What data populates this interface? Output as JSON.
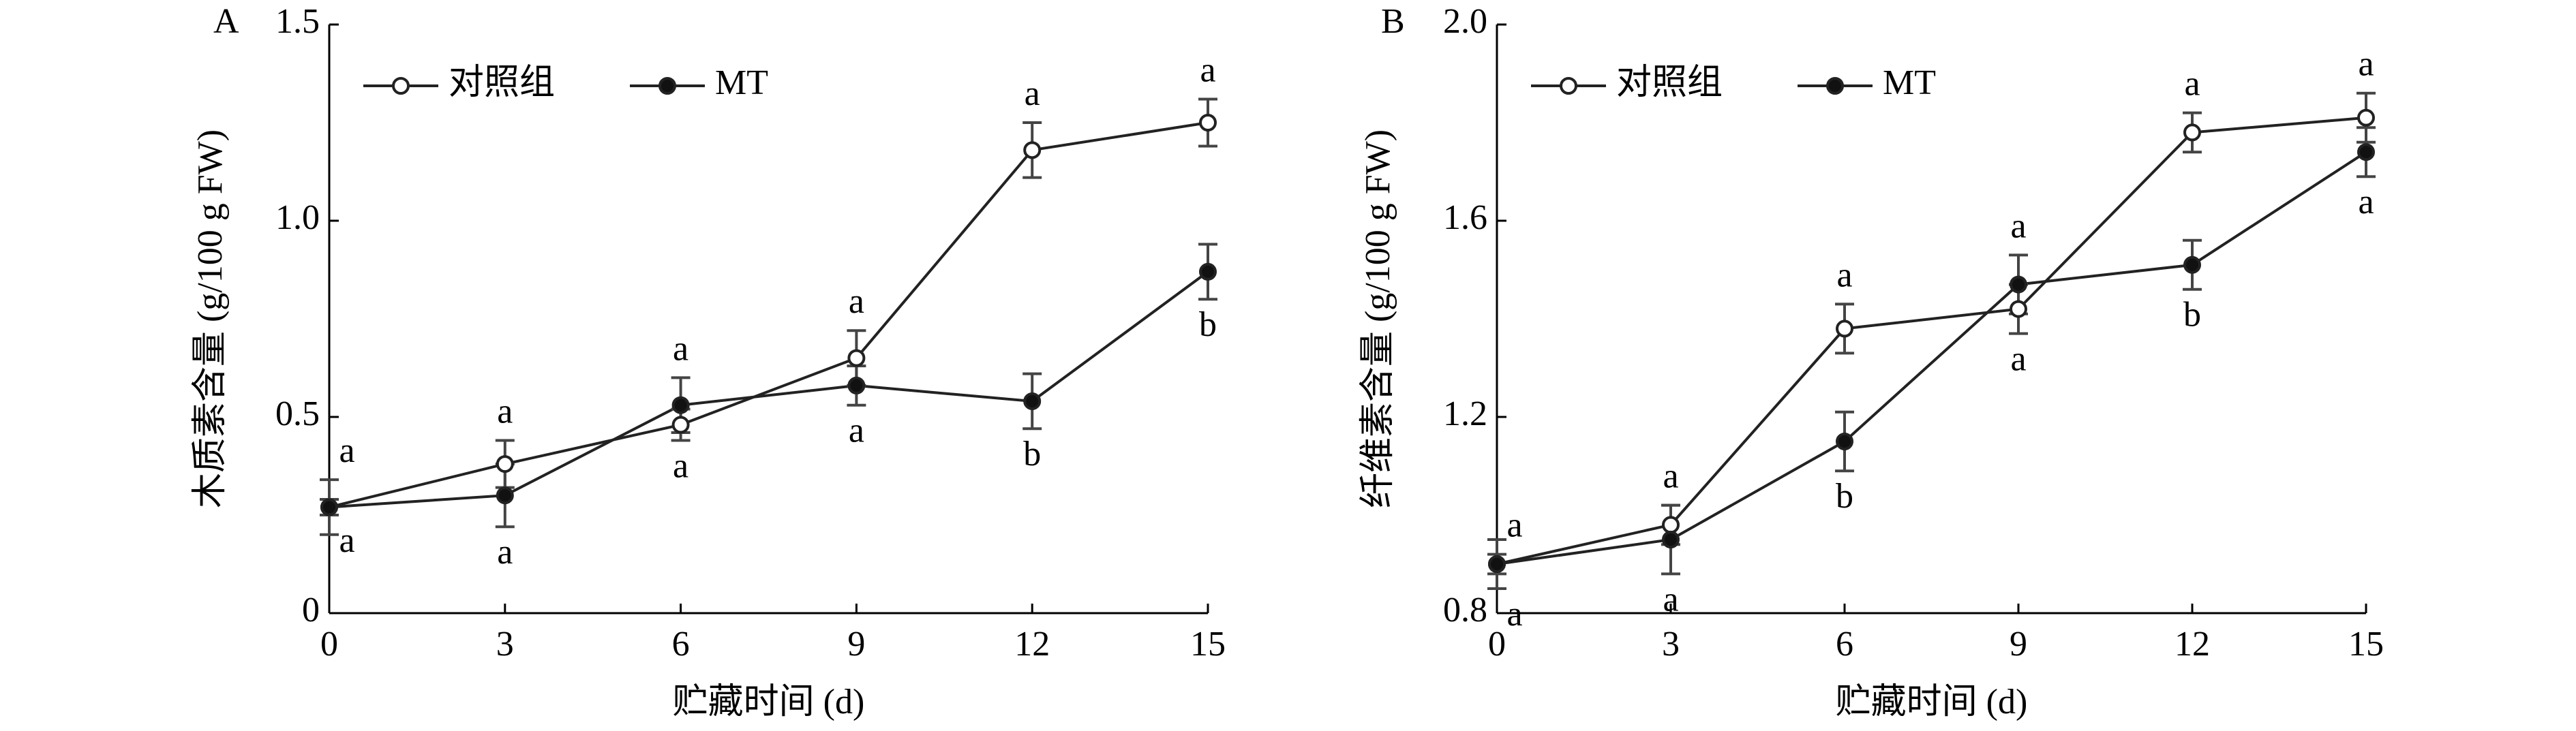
{
  "chart_data": [
    {
      "type": "line",
      "panel": "A",
      "ylabel": "木质素含量 (g/100 g FW)",
      "xlabel": "贮藏时间 (d)",
      "x": [
        0,
        3,
        6,
        9,
        12,
        15
      ],
      "xlim": [
        0,
        15
      ],
      "xticks": [
        0,
        3,
        6,
        9,
        12,
        15
      ],
      "ylim": [
        0,
        1.5
      ],
      "yticks": [
        0,
        0.5,
        {
          "value": 1,
          "label": "1.0"
        },
        1.5
      ],
      "series": [
        {
          "name": "对照组",
          "color": "#222222",
          "marker_fill": "#ffffff",
          "values": [
            0.27,
            0.38,
            0.48,
            0.65,
            1.18,
            1.25
          ],
          "errors": [
            0.07,
            0.06,
            0.04,
            0.07,
            0.07,
            0.06
          ],
          "letters": [
            "a",
            "a",
            "a",
            "a",
            "a",
            "a"
          ]
        },
        {
          "name": "MT",
          "color": "#222222",
          "marker_fill": "#111111",
          "values": [
            0.27,
            0.3,
            0.53,
            0.58,
            0.54,
            0.87
          ],
          "errors": [
            0.02,
            0.08,
            0.07,
            0.05,
            0.07,
            0.07
          ],
          "letters": [
            "a",
            "a",
            "a",
            "a",
            "b",
            "b"
          ]
        }
      ]
    },
    {
      "type": "line",
      "panel": "B",
      "ylabel": "纤维素含量 (g/100 g FW)",
      "xlabel": "贮藏时间 (d)",
      "x": [
        0,
        3,
        6,
        9,
        12,
        15
      ],
      "xlim": [
        0,
        15
      ],
      "xticks": [
        0,
        3,
        6,
        9,
        12,
        15
      ],
      "ylim": [
        0.8,
        2.0
      ],
      "yticks": [
        0.8,
        1.2,
        1.6,
        {
          "value": 2,
          "label": "2.0"
        }
      ],
      "series": [
        {
          "name": "对照组",
          "color": "#222222",
          "marker_fill": "#ffffff",
          "values": [
            0.9,
            0.98,
            1.38,
            1.42,
            1.78,
            1.81
          ],
          "errors": [
            0.02,
            0.04,
            0.05,
            0.05,
            0.04,
            0.05
          ],
          "letters": [
            "a",
            "a",
            "a",
            "a",
            "a",
            "a"
          ]
        },
        {
          "name": "MT",
          "color": "#222222",
          "marker_fill": "#111111",
          "values": [
            0.9,
            0.95,
            1.15,
            1.47,
            1.51,
            1.74
          ],
          "errors": [
            0.05,
            0.07,
            0.06,
            0.06,
            0.05,
            0.05
          ],
          "letters": [
            "a",
            "a",
            "b",
            "a",
            "b",
            "a"
          ]
        }
      ]
    }
  ]
}
